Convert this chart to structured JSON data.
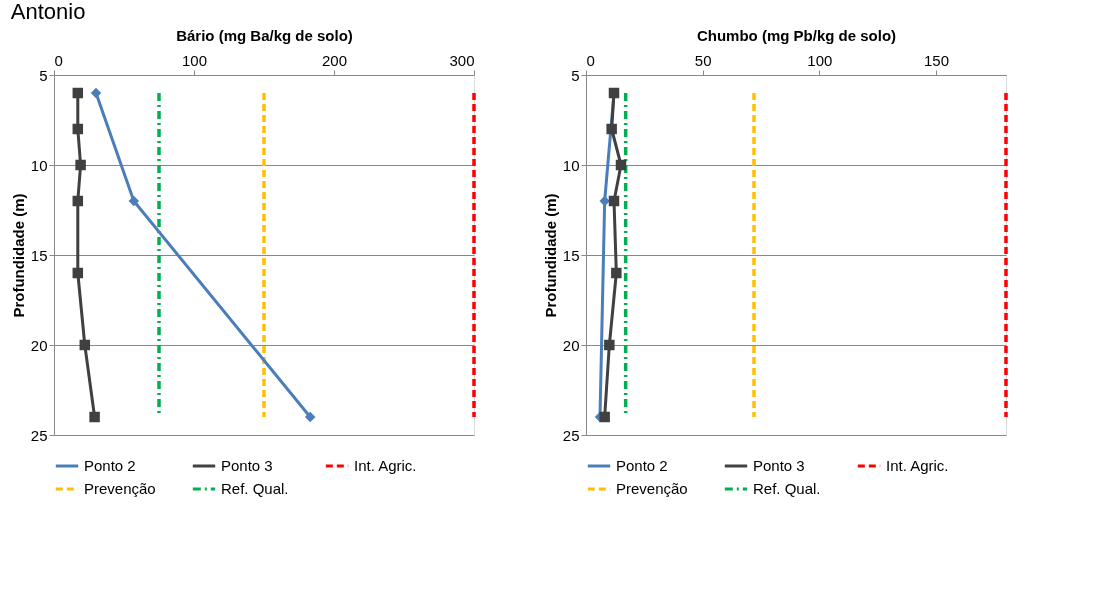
{
  "chart_data": [
    {
      "type": "line",
      "orientation": "horizontal",
      "xlabel": "Bário (mg Ba/kg de solo)",
      "ylabel": "Profundidade (m)",
      "annotations": [
        "Antonio"
      ],
      "xlim": [
        0,
        300
      ],
      "xticks": [
        0,
        100,
        200,
        300
      ],
      "ylim": [
        25,
        5
      ],
      "yticks": [
        5,
        10,
        15,
        20,
        25
      ],
      "grid": "y",
      "legend": "bottom",
      "series": [
        {
          "name": "Ponto 2",
          "color": "#4a7ebb",
          "marker": "diamond",
          "line_style": "solid",
          "x": [
            6,
            12,
            24
          ],
          "values": [
            30,
            57,
            183
          ]
        },
        {
          "name": "Ponto 3",
          "color": "#404040",
          "marker": "square",
          "line_style": "solid",
          "x": [
            6,
            8,
            10,
            12,
            16,
            20,
            24
          ],
          "values": [
            17,
            17,
            19,
            17,
            17,
            22,
            29
          ]
        }
      ],
      "ref_lines": [
        {
          "axis": "x",
          "value": 300,
          "label": "Int. Agric.",
          "color": "#ff0000",
          "line_style": "dashed"
        },
        {
          "axis": "x",
          "value": 150,
          "label": "Prevenção",
          "color": "#ffc000",
          "line_style": "dashed"
        },
        {
          "axis": "x",
          "value": 75,
          "label": "Ref. Qual.",
          "color": "#00b050",
          "line_style": "dashdot"
        }
      ]
    },
    {
      "type": "line",
      "orientation": "horizontal",
      "xlabel": "Chumbo (mg Pb/kg de solo)",
      "ylabel": "Profundidade (m)",
      "xlim": [
        0,
        180
      ],
      "xticks": [
        0,
        50,
        100,
        150
      ],
      "ylim": [
        25,
        5
      ],
      "yticks": [
        5,
        10,
        15,
        20,
        25
      ],
      "grid": "y",
      "legend": "bottom",
      "series": [
        {
          "name": "Ponto 2",
          "color": "#4a7ebb",
          "marker": "diamond",
          "line_style": "solid",
          "x": [
            6,
            12,
            24
          ],
          "values": [
            12,
            8,
            6
          ]
        },
        {
          "name": "Ponto 3",
          "color": "#404040",
          "marker": "square",
          "line_style": "solid",
          "x": [
            6,
            8,
            10,
            12,
            16,
            20,
            24
          ],
          "values": [
            12,
            11,
            15,
            12,
            13,
            10,
            8
          ]
        }
      ],
      "ref_lines": [
        {
          "axis": "x",
          "value": 180,
          "label": "Int. Agric.",
          "color": "#ff0000",
          "line_style": "dashed"
        },
        {
          "axis": "x",
          "value": 72,
          "label": "Prevenção",
          "color": "#ffc000",
          "line_style": "dashed"
        },
        {
          "axis": "x",
          "value": 17,
          "label": "Ref. Qual.",
          "color": "#00b050",
          "line_style": "dashdot"
        }
      ]
    }
  ]
}
